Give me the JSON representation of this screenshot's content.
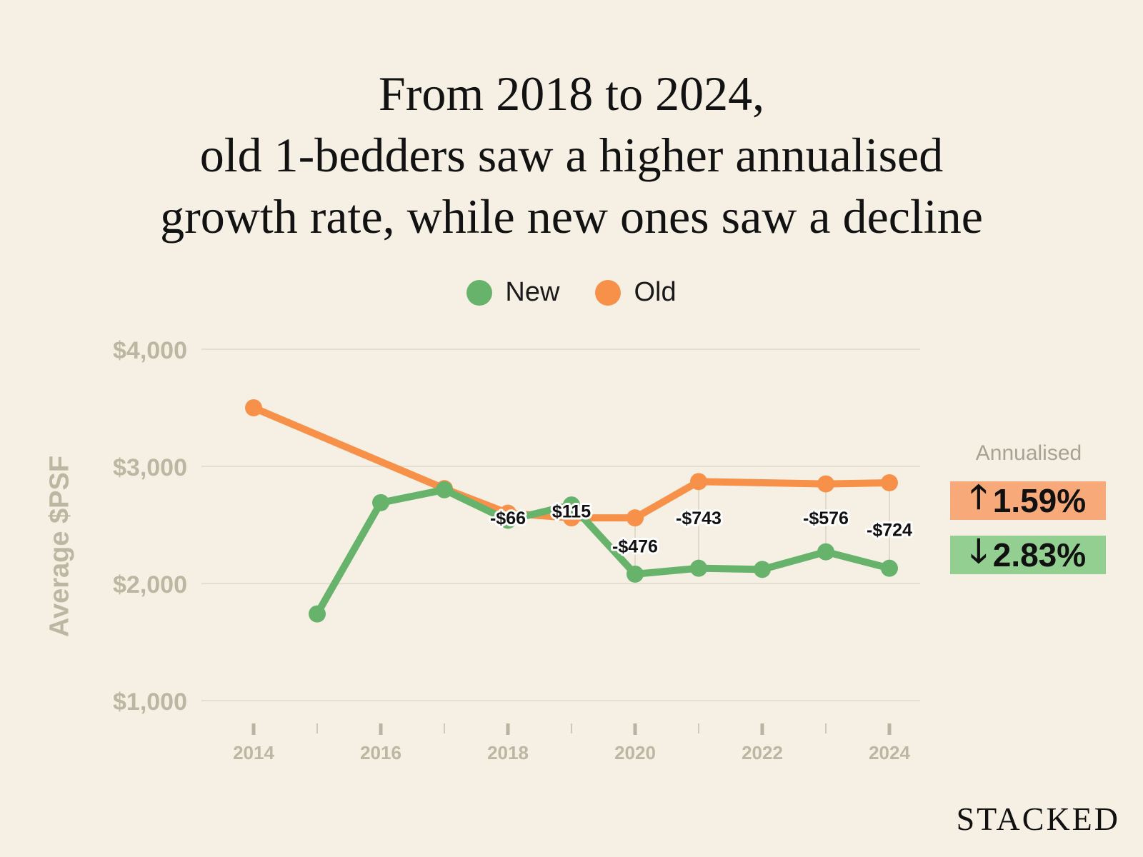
{
  "title_lines": [
    "From 2018 to 2024,",
    "old 1-bedders saw a higher annualised",
    "growth rate, while new ones saw a decline"
  ],
  "brand": "STACKED",
  "annualised": {
    "heading": "Annualised",
    "up_arrow": "🡑",
    "up_value": "1.59%",
    "down_arrow": "🡓",
    "down_value": "2.83%"
  },
  "colors": {
    "new": "#68b36b",
    "old": "#f7914a",
    "gap_label_bg": "#ffffff",
    "grid": "#e4dfd0"
  },
  "chart_data": {
    "type": "line",
    "title": "",
    "xlabel": "",
    "ylabel": "Average $PSF",
    "ylim": [
      1000,
      4000
    ],
    "y_ticks": [
      1000,
      2000,
      3000,
      4000
    ],
    "y_tick_labels": [
      "$1,000",
      "$2,000",
      "$3,000",
      "$4,000"
    ],
    "x_ticks": [
      2014,
      2015,
      2016,
      2017,
      2018,
      2019,
      2020,
      2021,
      2022,
      2023,
      2024
    ],
    "x_tick_labels": [
      "2014",
      "",
      "2016",
      "",
      "2018",
      "",
      "2020",
      "",
      "2022",
      "",
      "2024"
    ],
    "legend": "top-center",
    "series": [
      {
        "name": "New",
        "color": "#68b36b",
        "points": [
          [
            2015,
            1740
          ],
          [
            2016,
            2690
          ],
          [
            2017,
            2800
          ],
          [
            2018,
            2540
          ],
          [
            2019,
            2670
          ],
          [
            2020,
            2080
          ],
          [
            2021,
            2130
          ],
          [
            2022,
            2120
          ],
          [
            2023,
            2270
          ],
          [
            2024,
            2130
          ]
        ]
      },
      {
        "name": "Old",
        "color": "#f7914a",
        "points": [
          [
            2014,
            3500
          ],
          [
            2017,
            2810
          ],
          [
            2018,
            2600
          ],
          [
            2019,
            2560
          ],
          [
            2020,
            2560
          ],
          [
            2021,
            2870
          ],
          [
            2023,
            2850
          ],
          [
            2024,
            2860
          ]
        ]
      }
    ],
    "gap_labels": [
      {
        "x": 2018,
        "text": "-$66",
        "y": 2560,
        "range": [
          2540,
          2606
        ]
      },
      {
        "x": 2019,
        "text": "$115",
        "y": 2620,
        "range": [
          2555,
          2670
        ]
      },
      {
        "x": 2020,
        "text": "-$476",
        "y": 2320,
        "range": [
          2080,
          2556
        ]
      },
      {
        "x": 2021,
        "text": "-$743",
        "y": 2560,
        "range": [
          2130,
          2873
        ]
      },
      {
        "x": 2023,
        "text": "-$576",
        "y": 2560,
        "range": [
          2270,
          2846
        ]
      },
      {
        "x": 2024,
        "text": "-$724",
        "y": 2460,
        "range": [
          2136,
          2860
        ]
      }
    ]
  }
}
